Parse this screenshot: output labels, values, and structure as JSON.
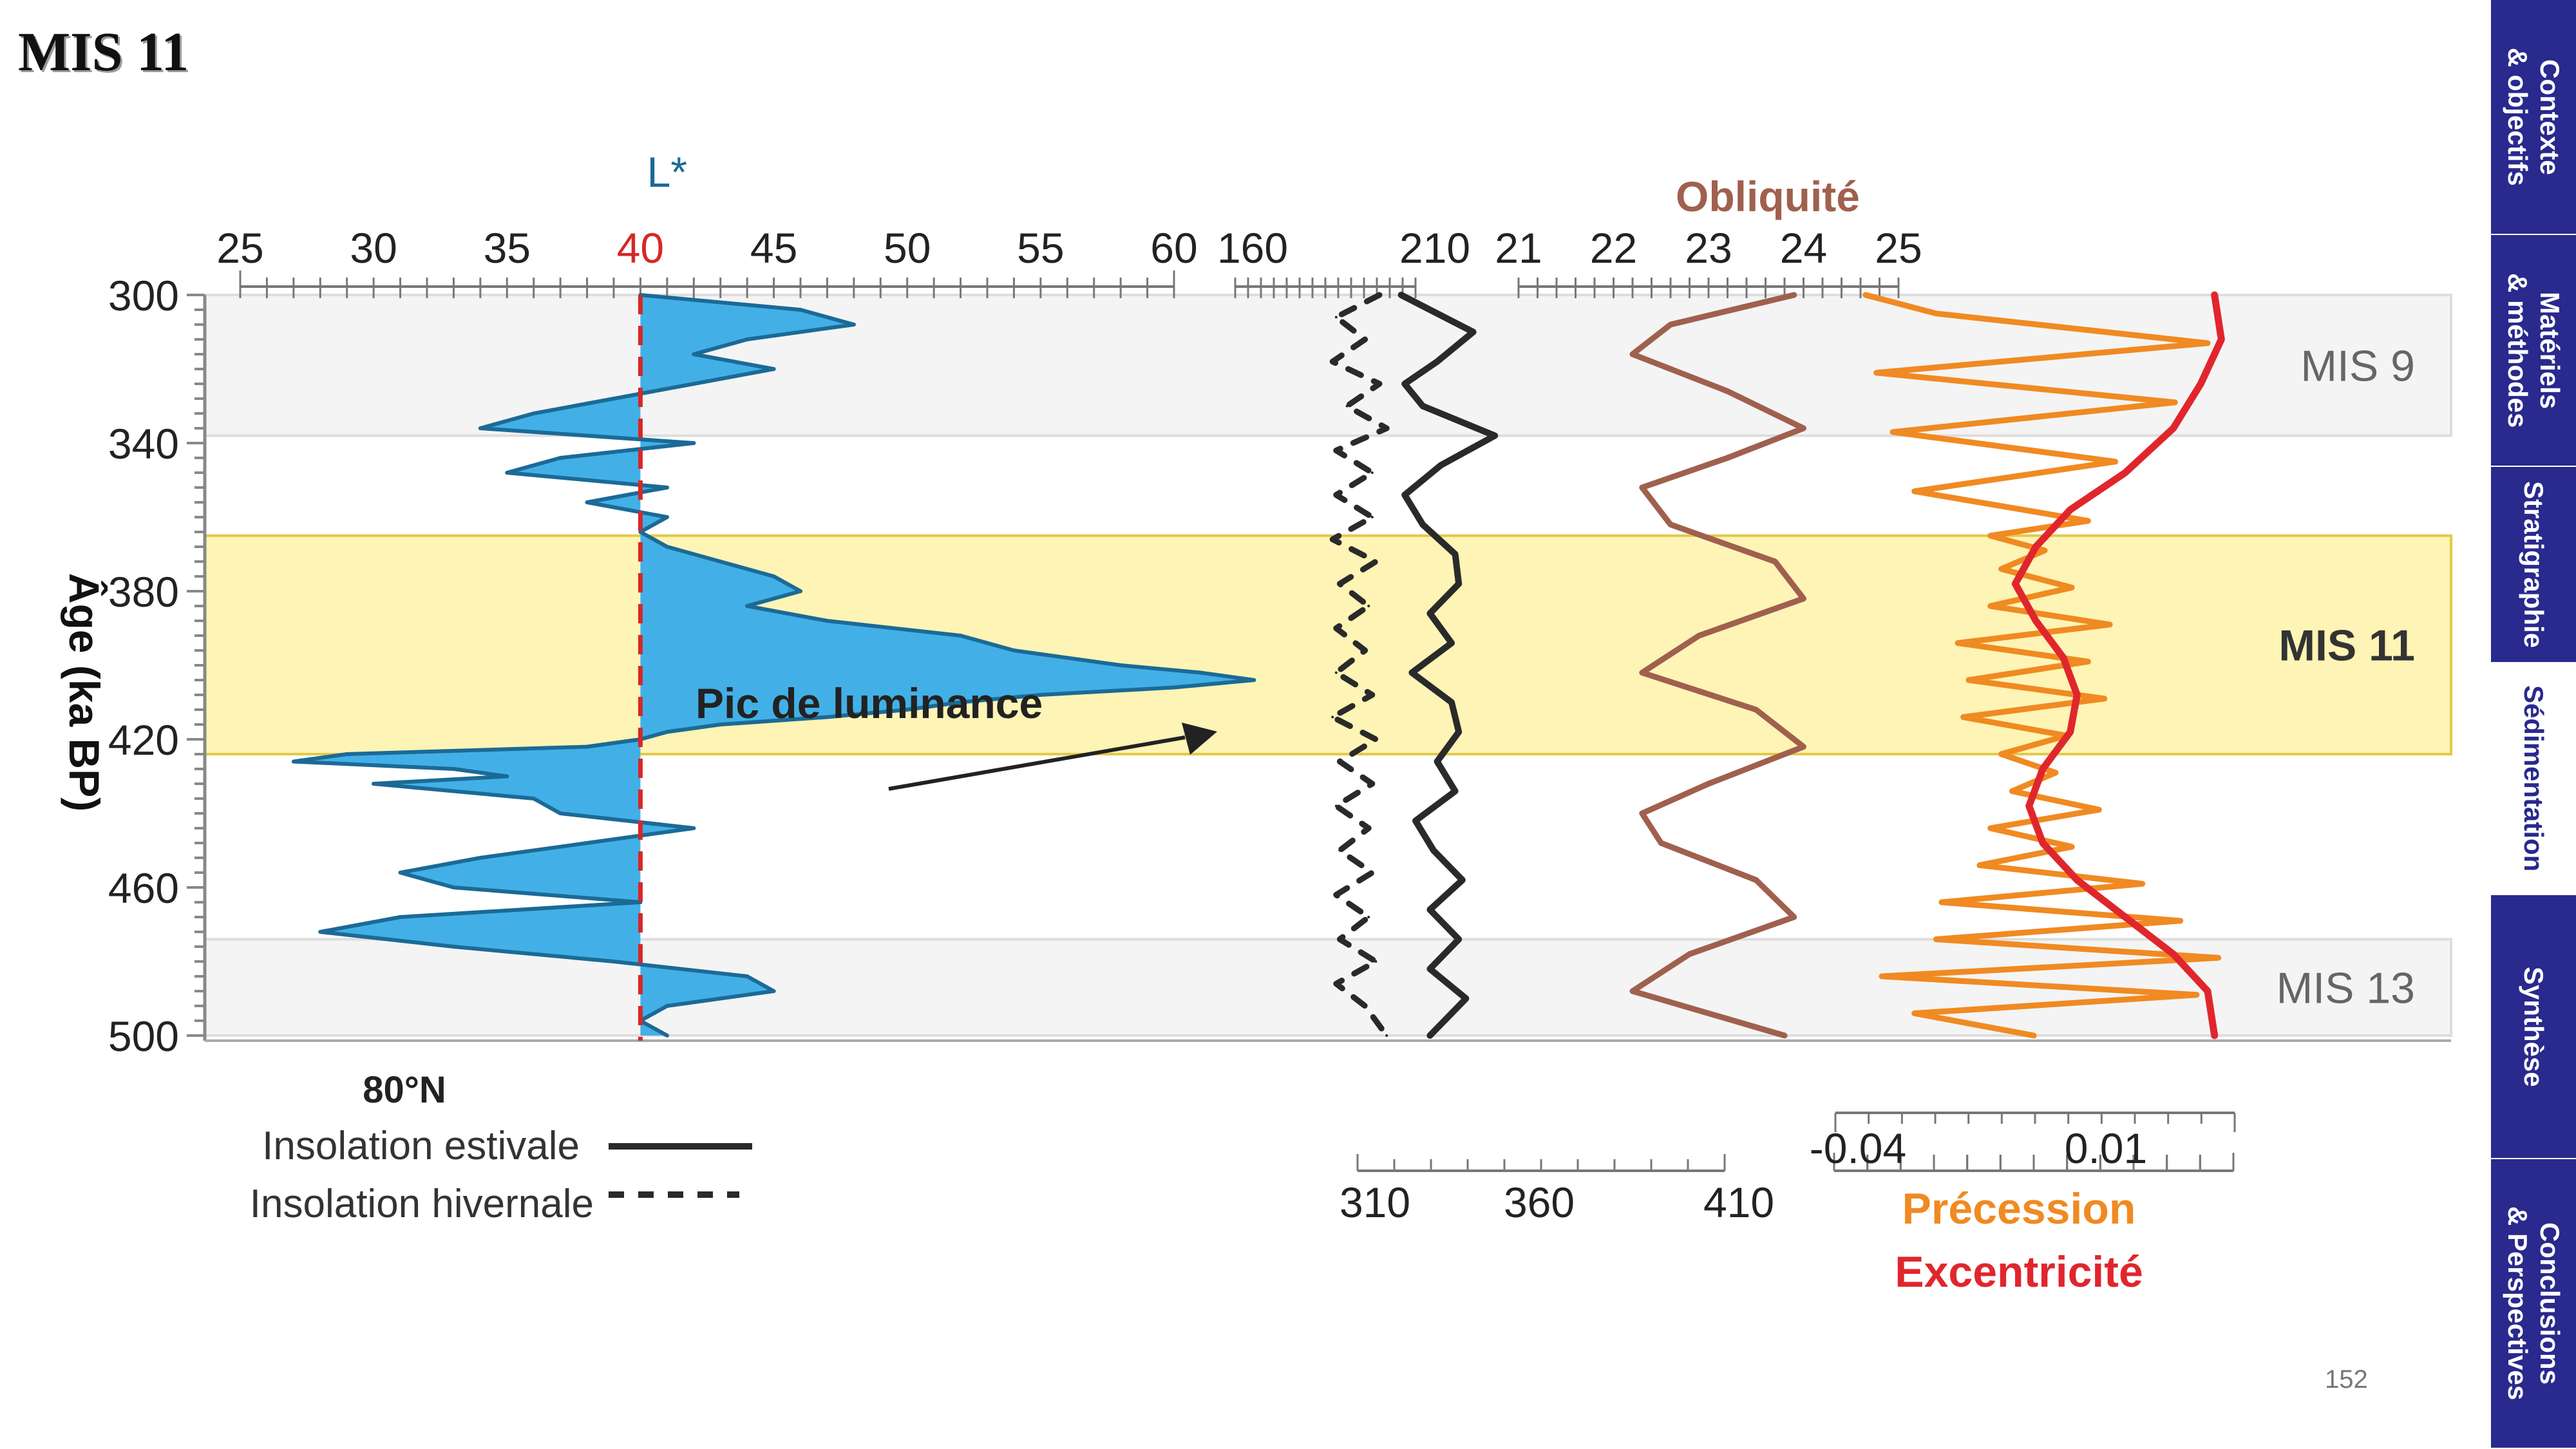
{
  "slide": {
    "title": "MIS 11",
    "page_number": "152"
  },
  "sidebar": {
    "tabs": [
      {
        "label": "Contexte\n& objectifs",
        "active": false
      },
      {
        "label": "Matériels\n& méthodes",
        "active": false
      },
      {
        "label": "Stratigraphie",
        "active": false
      },
      {
        "label": "Sédimentation",
        "active": true
      },
      {
        "label": "Synthèse",
        "active": false
      },
      {
        "label": "Conclusions\n& Perspectives",
        "active": false
      }
    ]
  },
  "colors": {
    "lstar_line": "#1b6a96",
    "lstar_fill": "#42b0e6",
    "threshold": "#d62728",
    "summer": "#2a2a2a",
    "winter": "#2a2a2a",
    "obliquity": "#a0604e",
    "precession": "#f08a22",
    "eccentricity": "#e0262d",
    "mis_odd_band": "#fdf4b5",
    "mis_even_band": "#f4f4f4"
  },
  "chart_data": {
    "type": "line",
    "y_axis": {
      "label": "Âge (ka BP)",
      "range": [
        300,
        500
      ],
      "ticks": [
        300,
        340,
        380,
        420,
        460,
        500
      ],
      "inverted": true
    },
    "mis_bands": [
      {
        "label": "MIS 9",
        "from": 300,
        "to": 338,
        "bold": false
      },
      {
        "label": "MIS 11",
        "from": 365,
        "to": 424,
        "bold": true
      },
      {
        "label": "MIS 13",
        "from": 474,
        "to": 500,
        "bold": false
      }
    ],
    "lstar": {
      "title": "L*",
      "range": [
        25,
        60
      ],
      "ticks": [
        "25",
        "30",
        "35",
        "40",
        "45",
        "50",
        "55",
        "60"
      ],
      "threshold": 40,
      "threshold_label": "40",
      "annotation": "Pic de luminance",
      "age": [
        300,
        304,
        308,
        312,
        316,
        320,
        324,
        328,
        332,
        336,
        340,
        344,
        348,
        352,
        356,
        360,
        364,
        368,
        372,
        376,
        380,
        384,
        388,
        392,
        396,
        400,
        402,
        404,
        406,
        408,
        410,
        412,
        414,
        416,
        418,
        420,
        422,
        424,
        426,
        428,
        430,
        432,
        436,
        440,
        444,
        448,
        452,
        456,
        460,
        464,
        468,
        472,
        476,
        480,
        484,
        488,
        492,
        496,
        500
      ],
      "values": [
        40,
        46,
        48,
        44,
        42,
        45,
        42,
        39,
        36,
        34,
        42,
        37,
        35,
        41,
        38,
        41,
        40,
        41,
        43,
        45,
        46,
        44,
        47,
        52,
        54,
        58,
        61,
        63,
        60,
        55,
        52,
        50,
        47,
        43,
        41,
        40,
        38,
        29,
        27,
        33,
        35,
        30,
        36,
        37,
        42,
        38,
        34,
        31,
        33,
        40,
        31,
        28,
        33,
        39,
        44,
        45,
        41,
        40,
        41
      ]
    },
    "insolation": {
      "location_label": "80°N",
      "range": [
        160,
        210
      ],
      "ticks": [
        "160",
        "210"
      ],
      "summer_label": "Insolation estivale",
      "winter_label": "Insolation hivernale",
      "summer_age": [
        300,
        310,
        318,
        324,
        330,
        338,
        346,
        354,
        362,
        370,
        378,
        386,
        394,
        402,
        410,
        418,
        426,
        434,
        442,
        450,
        458,
        466,
        474,
        482,
        490,
        500
      ],
      "summer_values": [
        206,
        226,
        216,
        207,
        212,
        232,
        217,
        207,
        212,
        221,
        222,
        214,
        220,
        209,
        220,
        222,
        216,
        221,
        210,
        215,
        223,
        214,
        222,
        214,
        224,
        214
      ],
      "winter_age": [
        300,
        306,
        312,
        318,
        324,
        330,
        336,
        342,
        348,
        354,
        360,
        366,
        372,
        378,
        384,
        390,
        396,
        402,
        408,
        414,
        420,
        426,
        432,
        438,
        444,
        450,
        456,
        462,
        468,
        474,
        480,
        486,
        492,
        500
      ],
      "winter_values": [
        200,
        188,
        196,
        187,
        200,
        191,
        202,
        188,
        198,
        188,
        198,
        187,
        199,
        189,
        197,
        188,
        196,
        188,
        198,
        187,
        199,
        189,
        198,
        188,
        197,
        189,
        198,
        188,
        197,
        189,
        199,
        188,
        196,
        202
      ]
    },
    "obliquity": {
      "title": "Obliquité",
      "range": [
        21,
        25
      ],
      "ticks": [
        "21",
        "22",
        "23",
        "24",
        "25"
      ],
      "age": [
        300,
        308,
        316,
        326,
        336,
        344,
        352,
        362,
        372,
        382,
        392,
        402,
        412,
        422,
        432,
        440,
        448,
        458,
        468,
        478,
        488,
        500
      ],
      "values": [
        23.9,
        22.6,
        22.2,
        23.2,
        24.0,
        23.2,
        22.3,
        22.6,
        23.7,
        24.0,
        22.9,
        22.3,
        23.5,
        24.0,
        23.0,
        22.3,
        22.5,
        23.5,
        23.9,
        22.8,
        22.2,
        23.8
      ]
    },
    "precession_eccentricity": {
      "precession_label": "Précession",
      "eccentricity_label": "Excentricité",
      "bottom_ticks": [
        "-0.04",
        "0.01"
      ],
      "bottom_secondary_ticks": [
        "310",
        "360",
        "410"
      ],
      "precession_range": [
        -0.045,
        0.025
      ],
      "precession_age": [
        300,
        305,
        313,
        321,
        329,
        337,
        345,
        353,
        361,
        365,
        369,
        374,
        379,
        384,
        389,
        394,
        399,
        404,
        409,
        414,
        419,
        424,
        429,
        434,
        439,
        444,
        449,
        454,
        459,
        464,
        469,
        474,
        479,
        484,
        489,
        494,
        500
      ],
      "precession_values": [
        -0.043,
        -0.03,
        0.02,
        -0.041,
        0.014,
        -0.038,
        0.003,
        -0.034,
        -0.002,
        -0.02,
        -0.01,
        -0.018,
        -0.005,
        -0.02,
        0.002,
        -0.026,
        -0.002,
        -0.024,
        0.001,
        -0.025,
        -0.006,
        -0.018,
        -0.008,
        -0.016,
        0.0,
        -0.02,
        -0.005,
        -0.022,
        0.008,
        -0.029,
        0.015,
        -0.03,
        0.022,
        -0.04,
        0.018,
        -0.034,
        -0.012
      ],
      "eccentricity_range": [
        0.0,
        0.045
      ],
      "eccentricity_age": [
        300,
        312,
        324,
        336,
        348,
        358,
        368,
        378,
        388,
        398,
        408,
        418,
        428,
        438,
        448,
        458,
        468,
        478,
        488,
        500
      ],
      "eccentricity_values": [
        0.043,
        0.044,
        0.041,
        0.037,
        0.03,
        0.022,
        0.017,
        0.014,
        0.017,
        0.021,
        0.023,
        0.022,
        0.018,
        0.016,
        0.018,
        0.023,
        0.03,
        0.037,
        0.042,
        0.043
      ]
    }
  }
}
